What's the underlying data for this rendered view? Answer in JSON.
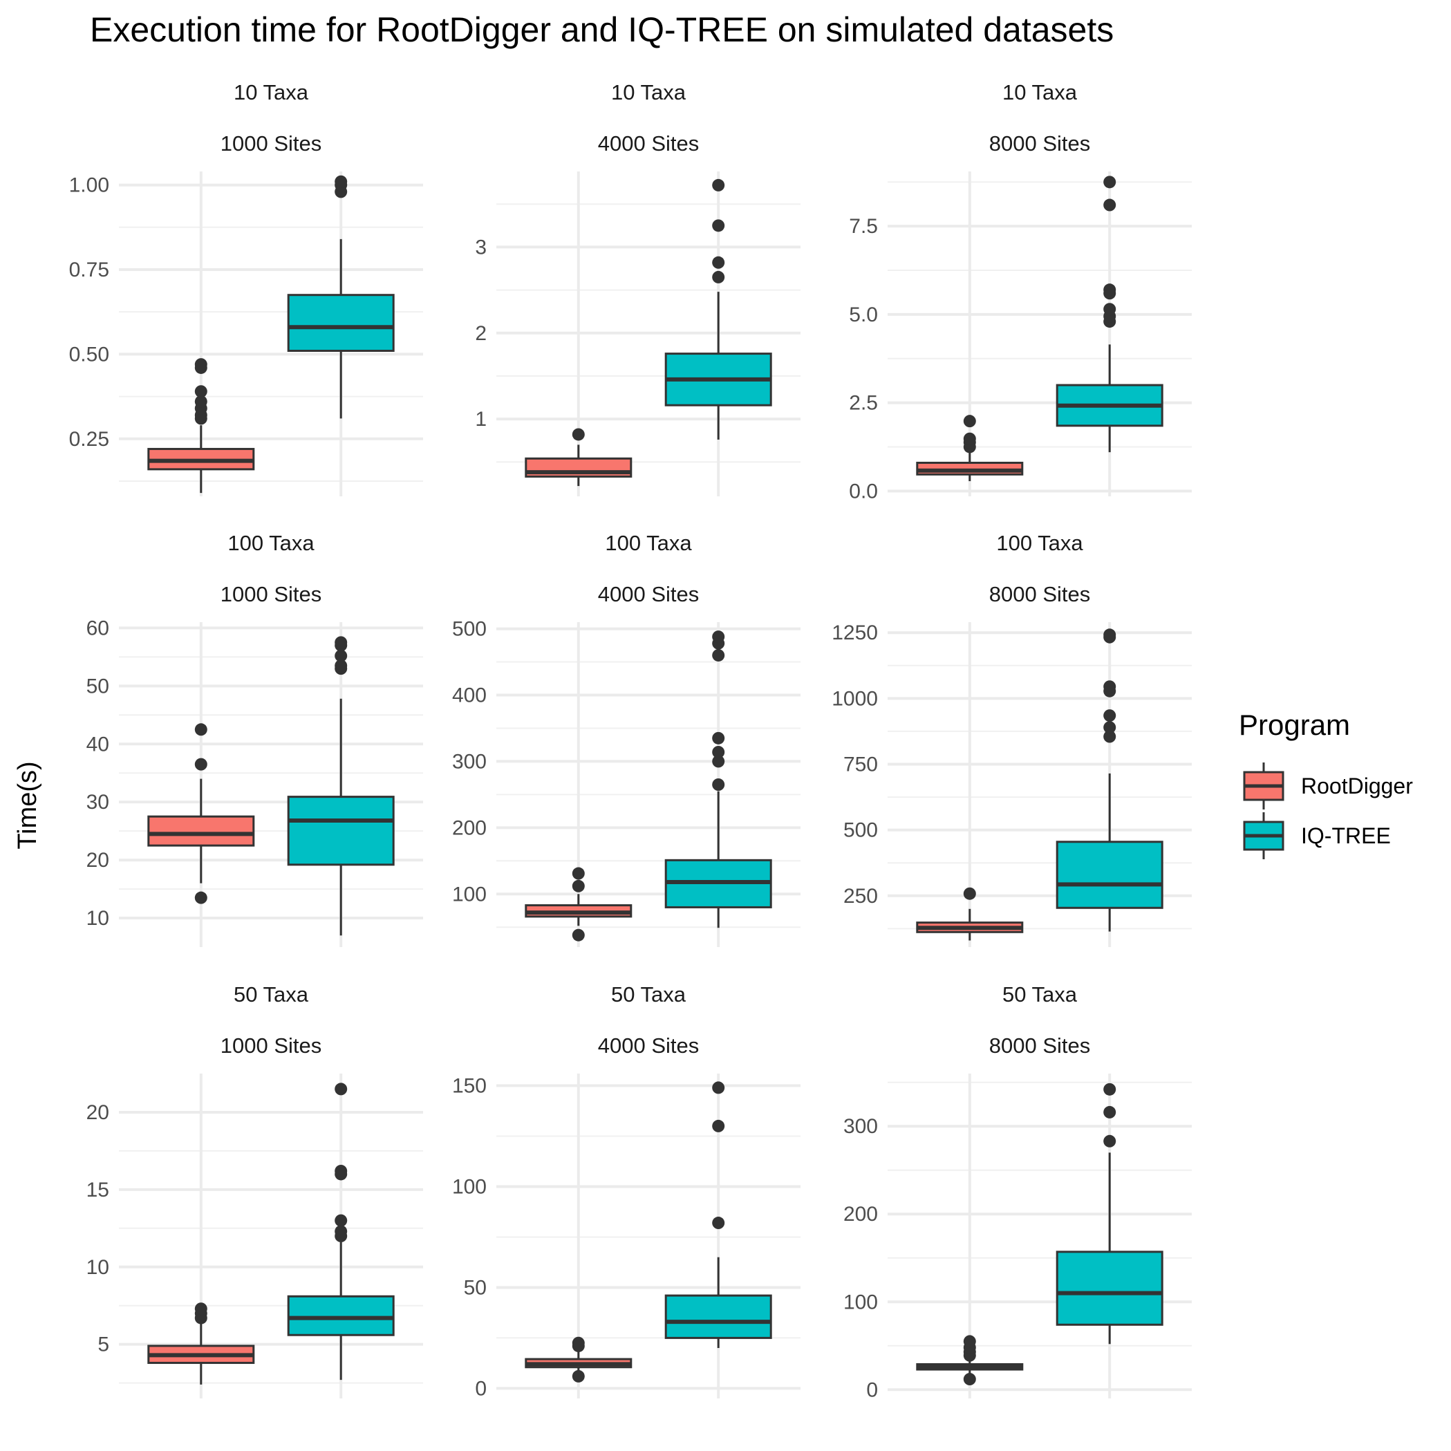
{
  "chart_data": {
    "type": "boxplot",
    "title": "Execution time for RootDigger and IQ-TREE on simulated datasets",
    "ylabel": "Time(s)",
    "xlabel": "",
    "grid": true,
    "legend": {
      "title": "Program",
      "position": "right",
      "entries": [
        {
          "name": "RootDigger",
          "color": "#F8766D"
        },
        {
          "name": "IQ-TREE",
          "color": "#00BFC4"
        }
      ]
    },
    "panels": [
      {
        "taxa_label": "10 Taxa",
        "sites_label": "1000 Sites",
        "ylim": [
          0.08,
          1.04
        ],
        "yticks": [
          0.25,
          0.5,
          0.75,
          1.0
        ],
        "ytick_labels": [
          "0.25",
          "0.50",
          "0.75",
          "1.00"
        ],
        "series": [
          {
            "name": "RootDigger",
            "min": 0.09,
            "q1": 0.16,
            "median": 0.185,
            "q3": 0.22,
            "max": 0.29,
            "outliers": [
              0.31,
              0.32,
              0.34,
              0.36,
              0.39,
              0.46,
              0.47
            ]
          },
          {
            "name": "IQ-TREE",
            "min": 0.31,
            "q1": 0.51,
            "median": 0.58,
            "q3": 0.675,
            "max": 0.84,
            "outliers": [
              0.98,
              1.0,
              1.01
            ]
          }
        ]
      },
      {
        "taxa_label": "10 Taxa",
        "sites_label": "4000 Sites",
        "ylim": [
          0.1,
          3.88
        ],
        "yticks": [
          1,
          2,
          3
        ],
        "ytick_labels": [
          "1",
          "2",
          "3"
        ],
        "series": [
          {
            "name": "RootDigger",
            "min": 0.22,
            "q1": 0.33,
            "median": 0.38,
            "q3": 0.54,
            "max": 0.7,
            "outliers": [
              0.82
            ]
          },
          {
            "name": "IQ-TREE",
            "min": 0.76,
            "q1": 1.16,
            "median": 1.46,
            "q3": 1.76,
            "max": 2.48,
            "outliers": [
              2.65,
              2.82,
              3.25,
              3.72
            ]
          }
        ]
      },
      {
        "taxa_label": "10 Taxa",
        "sites_label": "8000 Sites",
        "ylim": [
          -0.15,
          9.05
        ],
        "yticks": [
          0,
          2.5,
          5,
          7.5
        ],
        "ytick_labels": [
          "0.0",
          "2.5",
          "5.0",
          "7.5"
        ],
        "series": [
          {
            "name": "RootDigger",
            "min": 0.28,
            "q1": 0.47,
            "median": 0.58,
            "q3": 0.8,
            "max": 1.1,
            "outliers": [
              1.25,
              1.38,
              1.48,
              1.98
            ]
          },
          {
            "name": "IQ-TREE",
            "min": 1.1,
            "q1": 1.85,
            "median": 2.42,
            "q3": 3.0,
            "max": 4.15,
            "outliers": [
              4.8,
              4.95,
              5.15,
              5.6,
              5.7,
              8.1,
              8.75
            ]
          }
        ]
      },
      {
        "taxa_label": "100 Taxa",
        "sites_label": "1000 Sites",
        "ylim": [
          5,
          61
        ],
        "yticks": [
          10,
          20,
          30,
          40,
          50,
          60
        ],
        "ytick_labels": [
          "10",
          "20",
          "30",
          "40",
          "50",
          "60"
        ],
        "series": [
          {
            "name": "RootDigger",
            "min": 16,
            "q1": 22.5,
            "median": 24.5,
            "q3": 27.5,
            "max": 34,
            "outliers": [
              13.5,
              36.5,
              42.5
            ]
          },
          {
            "name": "IQ-TREE",
            "min": 7,
            "q1": 19.2,
            "median": 26.8,
            "q3": 30.9,
            "max": 47.8,
            "outliers": [
              53,
              53.5,
              55.2,
              57,
              57.5
            ]
          }
        ]
      },
      {
        "taxa_label": "100 Taxa",
        "sites_label": "4000 Sites",
        "ylim": [
          20,
          510
        ],
        "yticks": [
          100,
          200,
          300,
          400,
          500
        ],
        "ytick_labels": [
          "100",
          "200",
          "300",
          "400",
          "500"
        ],
        "series": [
          {
            "name": "RootDigger",
            "min": 52,
            "q1": 66,
            "median": 72,
            "q3": 83,
            "max": 100,
            "outliers": [
              38,
              112,
              131
            ]
          },
          {
            "name": "IQ-TREE",
            "min": 49,
            "q1": 80,
            "median": 118,
            "q3": 151,
            "max": 255,
            "outliers": [
              265,
              300,
              314,
              335,
              460,
              478,
              488
            ]
          }
        ]
      },
      {
        "taxa_label": "100 Taxa",
        "sites_label": "8000 Sites",
        "ylim": [
          55,
          1290
        ],
        "yticks": [
          250,
          500,
          750,
          1000,
          1250
        ],
        "ytick_labels": [
          "250",
          "500",
          "750",
          "1000",
          "1250"
        ],
        "series": [
          {
            "name": "RootDigger",
            "min": 80,
            "q1": 112,
            "median": 128,
            "q3": 148,
            "max": 200,
            "outliers": [
              258
            ]
          },
          {
            "name": "IQ-TREE",
            "min": 114,
            "q1": 204,
            "median": 293,
            "q3": 455,
            "max": 715,
            "outliers": [
              855,
              890,
              935,
              1028,
              1045,
              1233,
              1242
            ]
          }
        ]
      },
      {
        "taxa_label": "50 Taxa",
        "sites_label": "1000 Sites",
        "ylim": [
          1.5,
          22.5
        ],
        "yticks": [
          5,
          10,
          15,
          20
        ],
        "ytick_labels": [
          "5",
          "10",
          "15",
          "20"
        ],
        "series": [
          {
            "name": "RootDigger",
            "min": 2.4,
            "q1": 3.8,
            "median": 4.3,
            "q3": 4.9,
            "max": 6.5,
            "outliers": [
              6.7,
              7.0,
              7.3
            ]
          },
          {
            "name": "IQ-TREE",
            "min": 2.7,
            "q1": 5.6,
            "median": 6.7,
            "q3": 8.1,
            "max": 11.6,
            "outliers": [
              12.0,
              12.3,
              13.0,
              16.0,
              16.2,
              21.5
            ]
          }
        ]
      },
      {
        "taxa_label": "50 Taxa",
        "sites_label": "4000 Sites",
        "ylim": [
          -5,
          156
        ],
        "yticks": [
          0,
          50,
          100,
          150
        ],
        "ytick_labels": [
          "0",
          "50",
          "100",
          "150"
        ],
        "series": [
          {
            "name": "RootDigger",
            "min": 9,
            "q1": 10.5,
            "median": 12,
            "q3": 14.5,
            "max": 18,
            "outliers": [
              6,
              21,
              22.5
            ]
          },
          {
            "name": "IQ-TREE",
            "min": 20,
            "q1": 25,
            "median": 33,
            "q3": 46,
            "max": 65,
            "outliers": [
              82,
              130,
              149
            ]
          }
        ]
      },
      {
        "taxa_label": "50 Taxa",
        "sites_label": "8000 Sites",
        "ylim": [
          -10,
          360
        ],
        "yticks": [
          0,
          100,
          200,
          300
        ],
        "ytick_labels": [
          "0",
          "100",
          "200",
          "300"
        ],
        "series": [
          {
            "name": "RootDigger",
            "min": 18,
            "q1": 23,
            "median": 26,
            "q3": 29,
            "max": 36,
            "outliers": [
              12,
              39,
              43,
              48,
              55
            ]
          },
          {
            "name": "IQ-TREE",
            "min": 52,
            "q1": 74,
            "median": 110,
            "q3": 157,
            "max": 270,
            "outliers": [
              283,
              316,
              342
            ]
          }
        ]
      }
    ]
  }
}
